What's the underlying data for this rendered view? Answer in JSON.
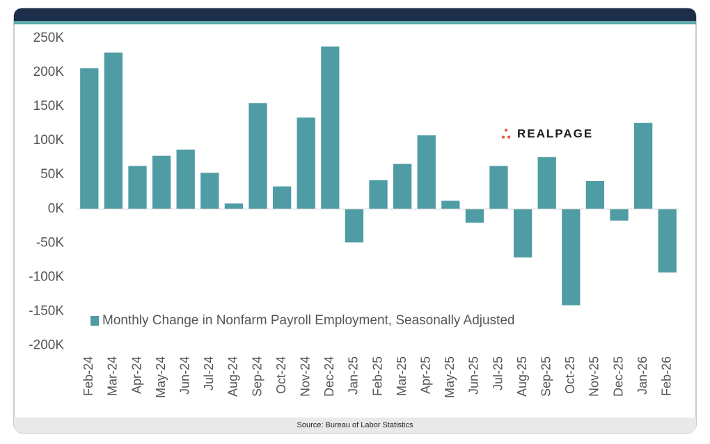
{
  "chart_data": {
    "type": "bar",
    "brand": "REALPAGE",
    "source": "Source: Bureau of Labor Statistics",
    "legend": "Monthly Change in Nonfarm Payroll Employment, Seasonally Adjusted",
    "color": "#4f9ca5",
    "categories": [
      "Feb-24",
      "Mar-24",
      "Apr-24",
      "May-24",
      "Jun-24",
      "Jul-24",
      "Aug-24",
      "Sep-24",
      "Oct-24",
      "Nov-24",
      "Dec-24",
      "Jan-25",
      "Feb-25",
      "Mar-25",
      "Apr-25",
      "May-25",
      "Jun-25",
      "Jul-25",
      "Aug-25",
      "Sep-25",
      "Oct-25",
      "Nov-25",
      "Dec-25",
      "Jan-26",
      "Feb-26"
    ],
    "values": [
      206000,
      229000,
      63000,
      78000,
      87000,
      53000,
      8000,
      155000,
      33000,
      134000,
      238000,
      -49000,
      42000,
      66000,
      108000,
      12000,
      -20000,
      63000,
      -71000,
      76000,
      -141000,
      41000,
      -17000,
      126000,
      -93000
    ],
    "ylim": [
      -200000,
      250000
    ],
    "yticks": [
      {
        "value": -200000,
        "label": "-200K"
      },
      {
        "value": -150000,
        "label": "-150K"
      },
      {
        "value": -100000,
        "label": "-100K"
      },
      {
        "value": -50000,
        "label": "-50K"
      },
      {
        "value": 0,
        "label": "0K"
      },
      {
        "value": 50000,
        "label": "50K"
      },
      {
        "value": 100000,
        "label": "100K"
      },
      {
        "value": 150000,
        "label": "150K"
      },
      {
        "value": 200000,
        "label": "200K"
      },
      {
        "value": 250000,
        "label": "250K"
      }
    ],
    "grid": false
  }
}
